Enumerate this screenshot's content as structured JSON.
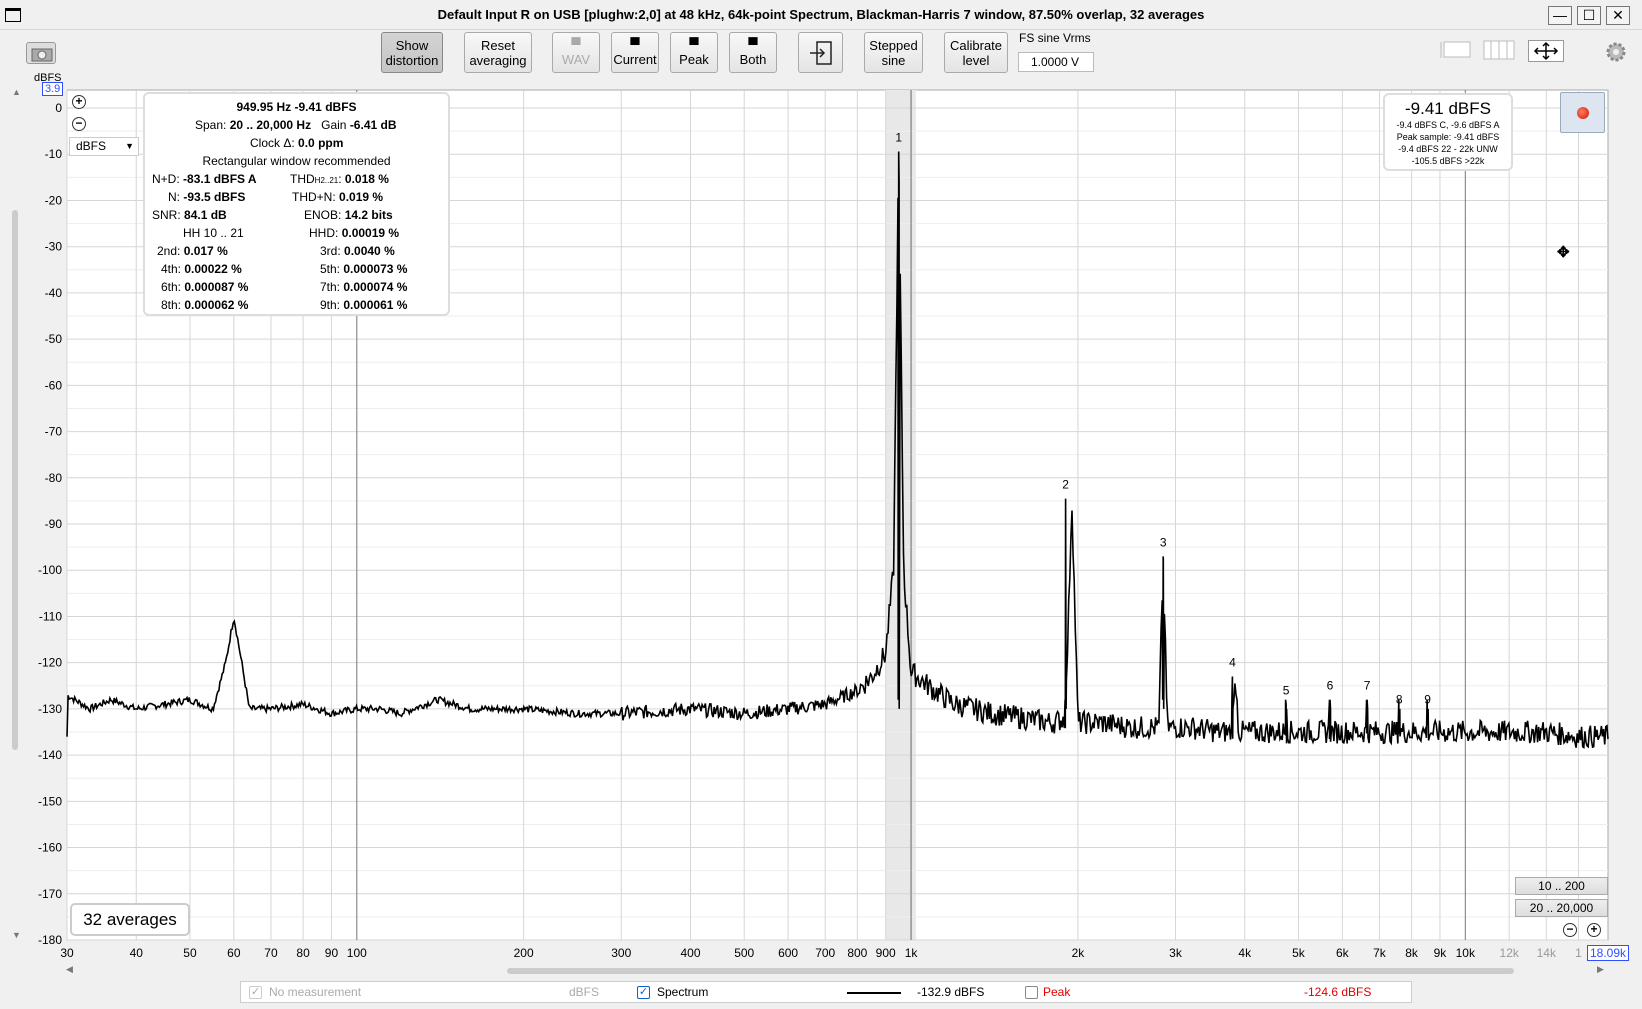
{
  "window": {
    "title": "Default Input R on USB [plughw:2,0] at 48 kHz, 64k-point Spectrum, Blackman-Harris 7 window, 87.50% overlap, 32 averages",
    "minimize": "—",
    "maximize": "☐",
    "close": "✕"
  },
  "toolbar": {
    "show_distortion": [
      "Show",
      "distortion"
    ],
    "reset_averaging": [
      "Reset",
      "averaging"
    ],
    "wav": "WAV",
    "current": "Current",
    "peak": "Peak",
    "both": "Both",
    "stepped_sine": [
      "Stepped",
      "sine"
    ],
    "calibrate_level": [
      "Calibrate",
      "level"
    ],
    "fs_label": "FS sine Vrms",
    "fs_value": "1.0000 V"
  },
  "plot": {
    "y_unit_label": "dBFS",
    "y_top_value": "3.9",
    "unit_select": "dBFS",
    "x_right_value": "18.09k",
    "y_ticks": [
      "0",
      "-10",
      "-20",
      "-30",
      "-40",
      "-50",
      "-60",
      "-70",
      "-80",
      "-90",
      "-100",
      "-110",
      "-120",
      "-130",
      "-140",
      "-150",
      "-160",
      "-170",
      "-180"
    ],
    "x_ticks": [
      "30",
      "40",
      "50",
      "60",
      "70",
      "80",
      "90",
      "100",
      "200",
      "300",
      "400",
      "500",
      "600",
      "700",
      "800",
      "900",
      "1k",
      "2k",
      "3k",
      "4k",
      "5k",
      "6k",
      "7k",
      "8k",
      "9k",
      "10k",
      "12k",
      "14k",
      "1"
    ]
  },
  "chart_data": {
    "type": "line",
    "x_scale": "log",
    "xlim": [
      30,
      18090
    ],
    "ylim": [
      -180,
      3.9
    ],
    "xlabel": "",
    "ylabel": "dBFS",
    "grid": true,
    "series": [
      {
        "name": "Spectrum",
        "color": "#000000",
        "x": [
          30,
          33,
          36,
          40,
          45,
          50,
          55,
          58,
          60,
          62,
          64,
          70,
          80,
          90,
          100,
          110,
          120,
          140,
          160,
          200,
          250,
          300,
          400,
          500,
          600,
          700,
          800,
          850,
          900,
          930,
          950,
          970,
          1000,
          1100,
          1200,
          1400,
          1600,
          1800,
          1900,
          1950,
          2000,
          2200,
          2500,
          2800,
          2850,
          2900,
          3200,
          3600,
          3800,
          3850,
          3900,
          4500,
          5000,
          6000,
          7000,
          8000,
          9000,
          10000,
          12000,
          14000,
          16000,
          18090
        ],
        "y": [
          -127,
          -130,
          -128,
          -130,
          -129,
          -128,
          -130,
          -120,
          -110,
          -120,
          -130,
          -130,
          -129,
          -131,
          -130,
          -130,
          -131,
          -128,
          -130,
          -130,
          -131,
          -131,
          -130,
          -131,
          -130,
          -129,
          -126,
          -123,
          -118,
          -100,
          -9.4,
          -100,
          -122,
          -126,
          -129,
          -131,
          -132,
          -133,
          -132,
          -84.5,
          -133,
          -133,
          -134,
          -134,
          -97,
          -134,
          -134,
          -135,
          -135,
          -123,
          -135,
          -135,
          -135,
          -135,
          -135,
          -135,
          -135,
          -135,
          -135,
          -135,
          -136,
          -136
        ]
      }
    ],
    "harmonic_markers": [
      {
        "label": "1",
        "freq": 950,
        "level": -9.4
      },
      {
        "label": "2",
        "freq": 1900,
        "level": -84.5
      },
      {
        "label": "3",
        "freq": 2850,
        "level": -97
      },
      {
        "label": "4",
        "freq": 3800,
        "level": -123
      },
      {
        "label": "5",
        "freq": 4750,
        "level": -129
      },
      {
        "label": "6",
        "freq": 5700,
        "level": -128
      },
      {
        "label": "7",
        "freq": 6650,
        "level": -128
      },
      {
        "label": "8",
        "freq": 7600,
        "level": -131
      },
      {
        "label": "9",
        "freq": 8550,
        "level": -131
      }
    ]
  },
  "info": {
    "freq_level": "949.95 Hz  -9.41 dBFS",
    "span_label": "Span:",
    "span_value": "20 .. 20,000 Hz",
    "gain_label": "Gain",
    "gain_value": "-6.41 dB",
    "clock_label": "Clock Δ:",
    "clock_value": "0.0 ppm",
    "window_note": "Rectangular window recommended",
    "nd_label": "N+D:",
    "nd_value": "-83.1 dBFS A",
    "thd_label": "THD",
    "thd_sub": "H2..21",
    "thd_value": "0.018 %",
    "n_label": "N:",
    "n_value": "-93.5 dBFS",
    "thdn_label": "THD+N:",
    "thdn_value": "0.019 %",
    "snr_label": "SNR:",
    "snr_value": "84.1 dB",
    "enob_label": "ENOB:",
    "enob_value": "14.2 bits",
    "hh_label": "HH 10 .. 21",
    "hhd_label": "HHD:",
    "hhd_value": "0.00019 %",
    "h2_label": "2nd:",
    "h2_value": "0.017 %",
    "h3_label": "3rd:",
    "h3_value": "0.0040 %",
    "h4_label": "4th:",
    "h4_value": "0.00022 %",
    "h5_label": "5th:",
    "h5_value": "0.000073 %",
    "h6_label": "6th:",
    "h6_value": "0.000087 %",
    "h7_label": "7th:",
    "h7_value": "0.000074 %",
    "h8_label": "8th:",
    "h8_value": "0.000062 %",
    "h9_label": "9th:",
    "h9_value": "0.000061 %"
  },
  "level": {
    "main": "-9.41 dBFS",
    "line1": "-9.4 dBFS C, -9.6 dBFS A",
    "line2": "Peak sample: -9.41 dBFS",
    "line3": "-9.4 dBFS 22 - 22k UNW",
    "line4": "-105.5 dBFS >22k"
  },
  "averages": "32 averages",
  "ranges": {
    "r1": "10 .. 200",
    "r2": "20 .. 20,000"
  },
  "legend": {
    "no_meas": "No measurement",
    "no_meas_unit": "dBFS",
    "spectrum": "Spectrum",
    "spectrum_value": "-132.9 dBFS",
    "peak": "Peak",
    "peak_value": "-124.6 dBFS",
    "peak_color": "#e00000"
  }
}
